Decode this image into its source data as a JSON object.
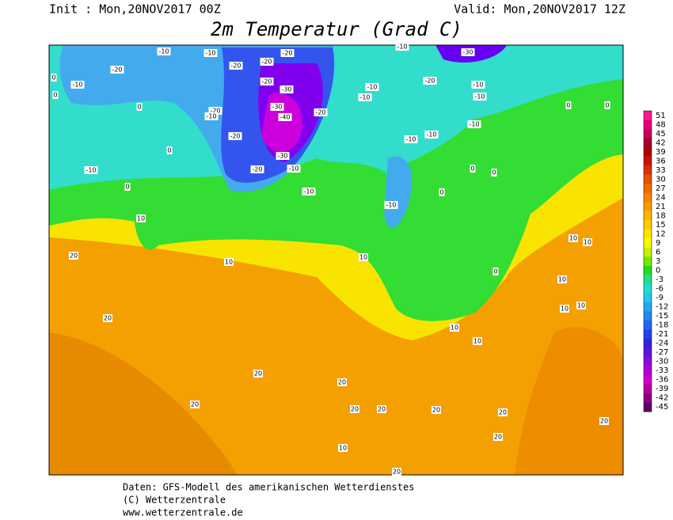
{
  "header": {
    "init": "Init : Mon,20NOV2017 00Z",
    "valid": "Valid: Mon,20NOV2017 12Z",
    "title": "2m Temperatur (Grad C)"
  },
  "legend": {
    "levels": [
      51,
      48,
      45,
      42,
      39,
      36,
      33,
      30,
      27,
      24,
      21,
      18,
      15,
      12,
      9,
      6,
      3,
      0,
      -3,
      -6,
      -9,
      -12,
      -15,
      -18,
      -21,
      -24,
      -27,
      -30,
      -33,
      -36,
      -39,
      -42,
      -45
    ],
    "colors": [
      "#ff1493",
      "#e6007a",
      "#c8005a",
      "#aa0030",
      "#b40000",
      "#c81400",
      "#d83200",
      "#e85000",
      "#f06a00",
      "#f48400",
      "#f89c00",
      "#fab400",
      "#fccc00",
      "#fee400",
      "#f8f800",
      "#c8f000",
      "#78e800",
      "#22dd22",
      "#22dd88",
      "#22ddcc",
      "#22c8ee",
      "#22a8f0",
      "#2288f0",
      "#2266f0",
      "#2244e8",
      "#3322e0",
      "#5a14e0",
      "#8a0ae0",
      "#b400d8",
      "#d200c8",
      "#b400a0",
      "#8c0080",
      "#640064"
    ]
  },
  "contour_labels": [
    -10,
    -10,
    -20,
    -10,
    -20,
    -20,
    -20,
    -20,
    -30,
    -30,
    -40,
    -20,
    -30,
    -20,
    -10,
    -20,
    -20,
    -10,
    -10,
    -10,
    -10,
    -10,
    -20,
    -10,
    -30,
    -10,
    -10,
    -10,
    -10,
    -10,
    -10,
    10,
    20,
    10,
    10,
    20,
    20,
    20,
    20,
    20,
    20,
    20,
    20,
    20,
    20,
    10,
    20,
    10,
    10,
    10,
    10,
    10,
    10,
    10,
    0,
    0,
    0,
    0,
    0,
    0,
    0,
    0,
    0,
    0,
    0
  ],
  "footer": [
    "Daten: GFS-Modell des amerikanischen Wetterdienstes",
    "(C) Wetterzentrale",
    "www.wetterzentrale.de"
  ]
}
